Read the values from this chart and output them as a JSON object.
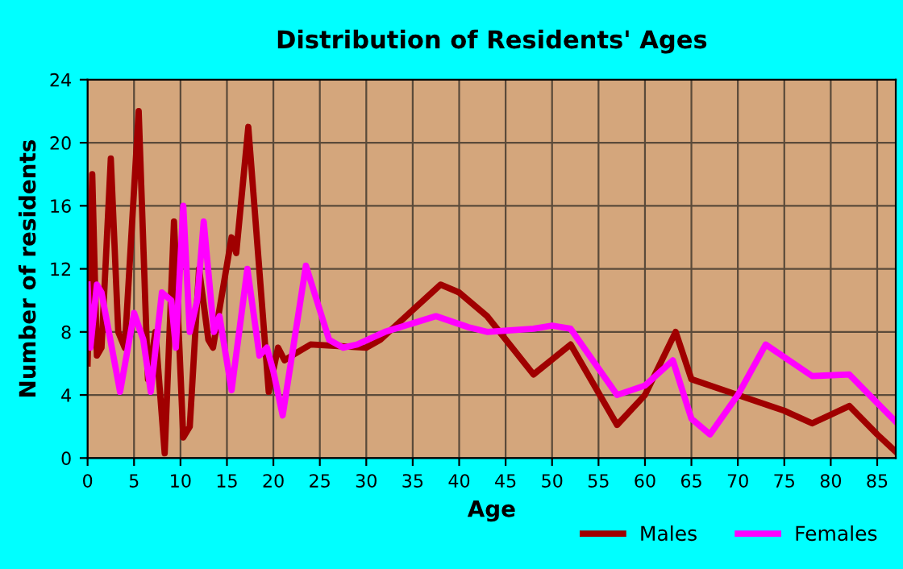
{
  "chart_data": {
    "type": "line",
    "title": "Distribution of Residents' Ages",
    "xlabel": "Age",
    "ylabel": "Number of residents",
    "xlim": [
      0,
      87
    ],
    "xticks": [
      0,
      5,
      10,
      15,
      20,
      25,
      30,
      35,
      40,
      45,
      50,
      55,
      60,
      65,
      70,
      75,
      80,
      85
    ],
    "ylim": [
      0,
      24
    ],
    "yticks": [
      0,
      4,
      8,
      12,
      16,
      20,
      24
    ],
    "grid": true,
    "legend": "bottom",
    "line_style": "solid",
    "marker": "none",
    "series": [
      {
        "name": "Males",
        "color": "#a00000",
        "x": [
          0,
          0.5,
          1,
          1.5,
          2.5,
          3.3,
          4,
          5.5,
          6.5,
          7.3,
          8.3,
          9.3,
          10.3,
          11,
          12,
          13,
          13.5,
          15.5,
          16,
          17.3,
          19.5,
          20.5,
          21.2,
          22,
          24,
          30,
          31.5,
          38,
          40,
          43,
          48,
          52,
          57,
          60,
          63.3,
          65,
          70,
          75,
          78,
          82,
          85,
          87
        ],
        "values": [
          6,
          18,
          6.5,
          7,
          19,
          8,
          7,
          22,
          5,
          8,
          0.3,
          15,
          1.3,
          2,
          12,
          7.5,
          7,
          14,
          13,
          21,
          4.2,
          7,
          6.2,
          6.5,
          7.2,
          7,
          7.5,
          11,
          10.5,
          9,
          5.3,
          7.2,
          2.1,
          4,
          8,
          5,
          4,
          3,
          2.2,
          3.3,
          1.5,
          0.4
        ]
      },
      {
        "name": "Females",
        "color": "#ff00ff",
        "x": [
          0,
          0.3,
          1,
          1.5,
          3.5,
          5,
          6,
          6.8,
          8,
          9,
          9.5,
          10.3,
          11,
          11.8,
          12.5,
          13.6,
          14.2,
          15.5,
          17.2,
          18.5,
          19.3,
          20,
          21,
          23.5,
          26,
          27.5,
          29,
          32,
          37.5,
          41,
          43,
          48,
          50,
          52,
          57,
          60,
          63,
          65,
          67,
          70,
          73,
          78,
          82,
          87
        ],
        "values": [
          11,
          7,
          11,
          10.5,
          4.2,
          9.2,
          7.5,
          4.2,
          10.5,
          10,
          7,
          16,
          8,
          10,
          15,
          8,
          9,
          4.3,
          12,
          6.5,
          7,
          5.5,
          2.7,
          12.2,
          7.5,
          7,
          7.2,
          8,
          9,
          8.3,
          8,
          8.2,
          8.4,
          8.2,
          4,
          4.6,
          6.2,
          2.5,
          1.5,
          4,
          7.2,
          5.2,
          5.3,
          2.3
        ]
      }
    ]
  }
}
